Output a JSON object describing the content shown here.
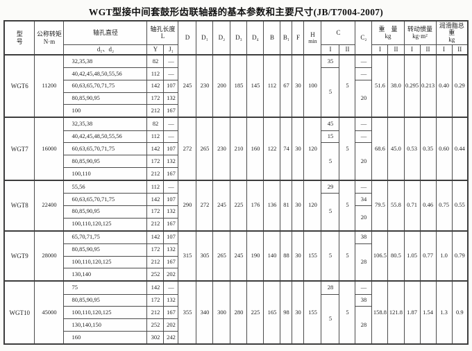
{
  "page": {
    "title": "WGT型接中间套鼓形齿联轴器的基本参数和主要尺寸(JB/T7004-2007)"
  },
  "table": {
    "header": {
      "model": "型\n号",
      "torque": "公称转矩\nN·m",
      "bore": "轴孔直径",
      "bore_sub": "d₁、d₂",
      "length": "轴孔长度\nL",
      "length_y": "Y",
      "length_j": "J₁",
      "dims": [
        "D",
        "D₁",
        "D₂",
        "D₃",
        "D₄",
        "B",
        "B₁",
        "F"
      ],
      "h": "H",
      "h_sub": "min",
      "c": "C",
      "c2": "C₂",
      "weight": "重　量\nkg",
      "inertia": "转动惯量\nkg·m²",
      "grease": "润滑脂总重\nkg",
      "col_i": "I",
      "col_ii": "II"
    },
    "groups": [
      {
        "model": "WGT6",
        "torque": "11200",
        "rows": [
          {
            "bore": "32,35,38",
            "y": "82",
            "j": "—"
          },
          {
            "bore": "40,42,45,48,50,55,56",
            "y": "112",
            "j": "—"
          },
          {
            "bore": "60,63,65,70,71,75",
            "y": "142",
            "j": "107"
          },
          {
            "bore": "80,85,90,95",
            "y": "172",
            "j": "132"
          },
          {
            "bore": "100",
            "y": "212",
            "j": "167"
          }
        ],
        "dims": [
          "245",
          "230",
          "200",
          "185",
          "145",
          "112",
          "67",
          "30",
          "100"
        ],
        "c1": [
          {
            "text": "35",
            "span": 1
          },
          {
            "text": "5",
            "span": 4
          }
        ],
        "c_ii": "5",
        "c2": [
          {
            "text": "—",
            "span": 1
          },
          {
            "text": "—",
            "span": 1
          },
          {
            "text": "20",
            "span": 3
          }
        ],
        "weight": [
          "51.6",
          "38.0"
        ],
        "inertia": [
          "0.295",
          "0.213"
        ],
        "grease": [
          "0.40",
          "0.29"
        ]
      },
      {
        "model": "WGT7",
        "torque": "16000",
        "rows": [
          {
            "bore": "32,35,38",
            "y": "82",
            "j": "—"
          },
          {
            "bore": "40,42,45,48,50,55,56",
            "y": "112",
            "j": "—"
          },
          {
            "bore": "60,63,65,70,71,75",
            "y": "142",
            "j": "107"
          },
          {
            "bore": "80,85,90,95",
            "y": "172",
            "j": "132"
          },
          {
            "bore": "100,110",
            "y": "212",
            "j": "167"
          }
        ],
        "dims": [
          "272",
          "265",
          "230",
          "210",
          "160",
          "122",
          "74",
          "30",
          "120"
        ],
        "c1": [
          {
            "text": "45",
            "span": 1
          },
          {
            "text": "15",
            "span": 1
          },
          {
            "text": "5",
            "span": 3
          }
        ],
        "c_ii": "5",
        "c2": [
          {
            "text": "—",
            "span": 1
          },
          {
            "text": "—",
            "span": 1
          },
          {
            "text": "20",
            "span": 3
          }
        ],
        "weight": [
          "68.6",
          "45.0"
        ],
        "inertia": [
          "0.53",
          "0.35"
        ],
        "grease": [
          "0.60",
          "0.44"
        ]
      },
      {
        "model": "WGT8",
        "torque": "22400",
        "rows": [
          {
            "bore": "55,56",
            "y": "112",
            "j": "—"
          },
          {
            "bore": "60,63,65,70,71,75",
            "y": "142",
            "j": "107"
          },
          {
            "bore": "80,85,90,95",
            "y": "172",
            "j": "132"
          },
          {
            "bore": "100,110,120,125",
            "y": "212",
            "j": "167"
          }
        ],
        "dims": [
          "290",
          "272",
          "245",
          "225",
          "176",
          "136",
          "81",
          "30",
          "120"
        ],
        "c1": [
          {
            "text": "29",
            "span": 1
          },
          {
            "text": "5",
            "span": 3
          }
        ],
        "c_ii": "5",
        "c2": [
          {
            "text": "—",
            "span": 1
          },
          {
            "text": "34",
            "span": 1
          },
          {
            "text": "20",
            "span": 2
          }
        ],
        "weight": [
          "79.5",
          "55.8"
        ],
        "inertia": [
          "0.71",
          "0.46"
        ],
        "grease": [
          "0.75",
          "0.55"
        ]
      },
      {
        "model": "WGT9",
        "torque": "28000",
        "rows": [
          {
            "bore": "65,70,71,75",
            "y": "142",
            "j": "107"
          },
          {
            "bore": "80,85,90,95",
            "y": "172",
            "j": "132"
          },
          {
            "bore": "100,110,120,125",
            "y": "212",
            "j": "167"
          },
          {
            "bore": "130,140",
            "y": "252",
            "j": "202"
          }
        ],
        "dims": [
          "315",
          "305",
          "265",
          "245",
          "190",
          "140",
          "88",
          "30",
          "155"
        ],
        "c1": [
          {
            "text": "5",
            "span": 4
          }
        ],
        "c_ii": "5",
        "c2": [
          {
            "text": "38",
            "span": 1
          },
          {
            "text": "28",
            "span": 3
          }
        ],
        "weight": [
          "106.5",
          "80.5"
        ],
        "inertia": [
          "1.05",
          "0.77"
        ],
        "grease": [
          "1.0",
          "0.79"
        ]
      },
      {
        "model": "WGT10",
        "torque": "45000",
        "rows": [
          {
            "bore": "75",
            "y": "142",
            "j": "—"
          },
          {
            "bore": "80,85,90,95",
            "y": "172",
            "j": "132"
          },
          {
            "bore": "100,110,120,125",
            "y": "212",
            "j": "167"
          },
          {
            "bore": "130,140,150",
            "y": "252",
            "j": "202"
          },
          {
            "bore": "160",
            "y": "302",
            "j": "242"
          }
        ],
        "dims": [
          "355",
          "340",
          "300",
          "280",
          "225",
          "165",
          "98",
          "30",
          "155"
        ],
        "c1": [
          {
            "text": "28",
            "span": 1
          },
          {
            "text": "5",
            "span": 4
          }
        ],
        "c_ii": "5",
        "c2": [
          {
            "text": "—",
            "span": 1
          },
          {
            "text": "38",
            "span": 1
          },
          {
            "text": "28",
            "span": 3
          }
        ],
        "weight": [
          "158.8",
          "121.8"
        ],
        "inertia": [
          "1.87",
          "1.54"
        ],
        "grease": [
          "1.3",
          "0.9"
        ]
      }
    ]
  }
}
